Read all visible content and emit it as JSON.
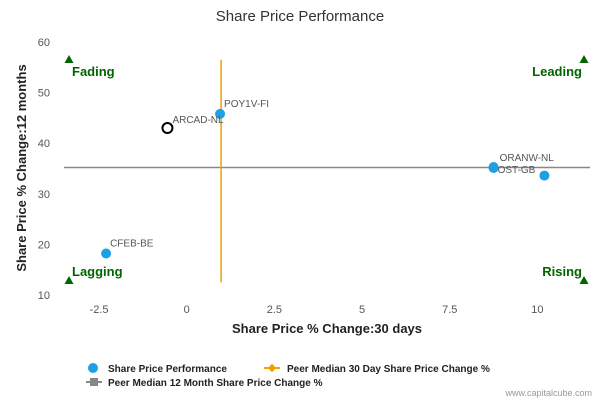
{
  "chart_data": {
    "type": "scatter",
    "title": "Share Price Performance",
    "xlabel": "Share Price % Change:30 days",
    "ylabel": "Share Price % Change:12 months",
    "xlim": [
      -3.5,
      11.5
    ],
    "ylim": [
      10,
      60
    ],
    "xticks": [
      "-2.5",
      "0",
      "2.5",
      "5",
      "7.5",
      "10"
    ],
    "xtick_values": [
      -2.5,
      0,
      2.5,
      5,
      7.5,
      10
    ],
    "yticks": [
      "10",
      "20",
      "30",
      "40",
      "50",
      "60"
    ],
    "ytick_values": [
      10,
      20,
      30,
      40,
      50,
      60
    ],
    "grid": false,
    "legend_position": "bottom",
    "series": [
      {
        "name": "Share Price Performance",
        "color": "#1ea0e6",
        "points": [
          {
            "label": "POY1V-FI",
            "x": 0.95,
            "y": 45.8
          },
          {
            "label": "CFEB-BE",
            "x": -2.3,
            "y": 18.2
          },
          {
            "label": "ORANW-NL",
            "x": 8.75,
            "y": 35.3
          },
          {
            "label": "OST-GB",
            "x": 8.75,
            "y": 35.1
          },
          {
            "label": "",
            "x": 10.2,
            "y": 33.6
          }
        ]
      }
    ],
    "highlight_point": {
      "label": "ARCAD-NL",
      "x": -0.55,
      "y": 43.0
    },
    "peer_median_30d": {
      "name": "Peer Median 30 Day Share Price Change %",
      "value": 0.98,
      "color": "#f0a000",
      "y_span": [
        12.5,
        56.5
      ]
    },
    "peer_median_12m": {
      "name": "Peer Median 12 Month Share Price Change %",
      "value": 35.2,
      "color": "#888888"
    },
    "quadrants": {
      "top_left": "Fading",
      "top_right": "Leading",
      "bottom_left": "Lagging",
      "bottom_right": "Rising"
    }
  },
  "credit": "www.capitalcube.com"
}
